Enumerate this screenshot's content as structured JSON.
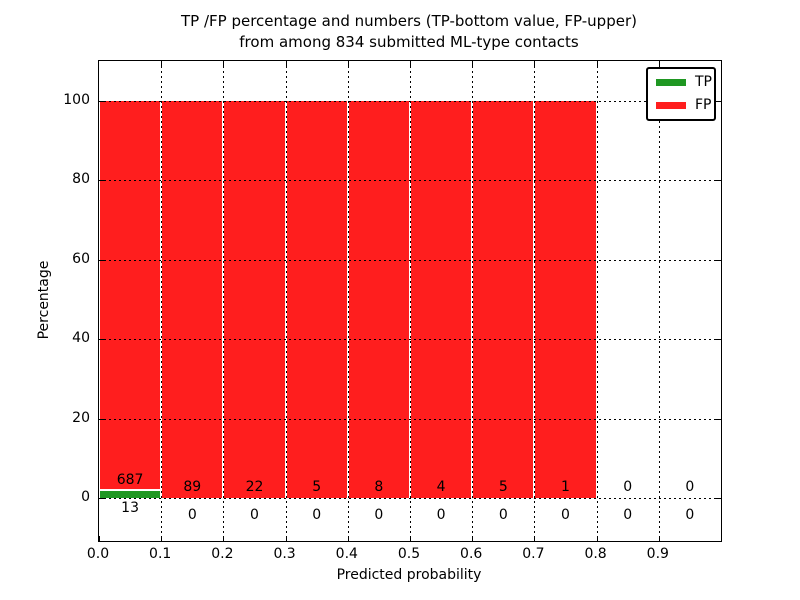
{
  "chart_data": {
    "type": "bar",
    "stacked": true,
    "title": "TP /FP percentage and numbers (TP-bottom value, FP-upper)",
    "subtitle": "from among 834 submitted ML-type contacts",
    "xlabel": "Predicted probability",
    "ylabel": "Percentage",
    "x_tick_labels": [
      "0.0",
      "0.1",
      "0.2",
      "0.3",
      "0.4",
      "0.5",
      "0.6",
      "0.7",
      "0.8",
      "0.9"
    ],
    "y_ticks": [
      0,
      20,
      40,
      60,
      80,
      100
    ],
    "xlim": [
      0.0,
      1.0
    ],
    "ylim": [
      -10.8,
      110.1
    ],
    "bin_width": 0.1,
    "total_contacts": 834,
    "grid": true,
    "grid_style": "dotted",
    "legend_position": "upper right",
    "legend": [
      {
        "label": "TP",
        "color": "#1f9722"
      },
      {
        "label": "FP",
        "color": "#ff1e1e"
      }
    ],
    "series": [
      {
        "name": "TP",
        "color": "#1f9722",
        "counts": [
          13,
          0,
          0,
          0,
          0,
          0,
          0,
          0,
          0,
          0
        ]
      },
      {
        "name": "FP",
        "color": "#ff1e1e",
        "counts": [
          687,
          89,
          22,
          5,
          8,
          4,
          5,
          1,
          0,
          0
        ]
      }
    ],
    "value_labels_note": "FP count printed above stack bottom, TP count printed below axis per bin"
  }
}
